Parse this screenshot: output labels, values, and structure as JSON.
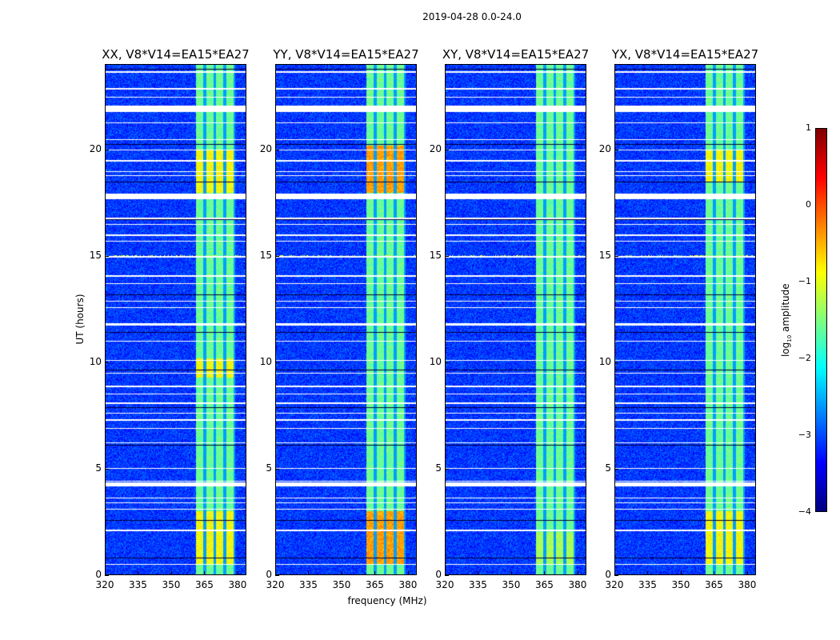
{
  "title": "2019-04-28 0.0-24.0",
  "xlabel": "frequency (MHz)",
  "ylabel": "UT (hours)",
  "colorbar": {
    "label_prefix": "log",
    "label_sub": "10",
    "label_suffix": " amplitude",
    "ticks": [
      "1",
      "0",
      "−1",
      "−2",
      "−3",
      "−4"
    ],
    "range": [
      -4,
      1
    ],
    "colormap": "jet"
  },
  "chart_data": {
    "type": "heatmap",
    "xlim": [
      320,
      384
    ],
    "ylim": [
      0,
      24
    ],
    "xticks": [
      "320",
      "335",
      "350",
      "365",
      "380"
    ],
    "yticks": [
      "0",
      "5",
      "10",
      "15",
      "20"
    ],
    "band_mhz": [
      361,
      379
    ],
    "flagged_hours": [
      0.5,
      2.1,
      3.1,
      3.4,
      3.6,
      4.2,
      4.4,
      5.0,
      6.2,
      6.9,
      7.3,
      7.6,
      8.1,
      8.5,
      8.9,
      9.5,
      10.1,
      11.0,
      11.8,
      12.6,
      12.9,
      13.7,
      14.1,
      15.0,
      15.7,
      16.0,
      16.5,
      16.8,
      17.8,
      18.8,
      19.0,
      19.5,
      20.0,
      20.5,
      21.3,
      21.8,
      22.0,
      22.5,
      22.9,
      23.7
    ],
    "panels": [
      {
        "title": "XX, V8*V14=EA15*EA27",
        "bright_hours": [
          [
            0.5,
            3
          ],
          [
            9.3,
            10.2
          ],
          [
            18,
            20
          ]
        ],
        "bright_level": -0.9
      },
      {
        "title": "YY, V8*V14=EA15*EA27",
        "bright_hours": [
          [
            0.5,
            3
          ],
          [
            18,
            20.2
          ]
        ],
        "bright_level": -0.4
      },
      {
        "title": "XY, V8*V14=EA15*EA27",
        "bright_hours": [
          [
            0.5,
            2
          ]
        ],
        "bright_level": -1.3
      },
      {
        "title": "YX, V8*V14=EA15*EA27",
        "bright_hours": [
          [
            0.5,
            3
          ],
          [
            18.5,
            20
          ]
        ],
        "bright_level": -0.9
      }
    ]
  }
}
